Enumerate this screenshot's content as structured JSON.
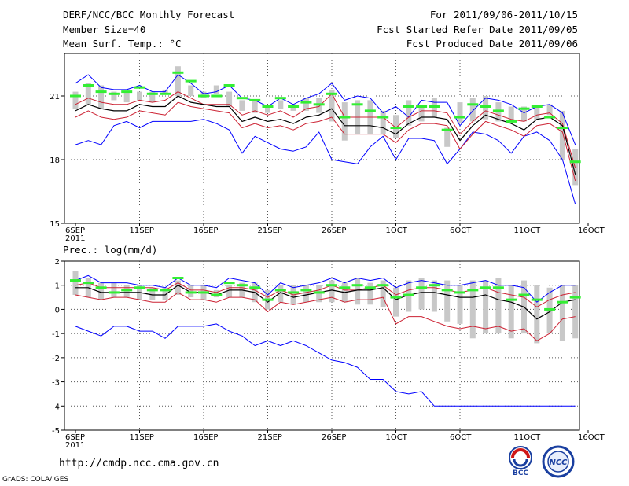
{
  "header": {
    "title": "DERF/NCC/BCC Monthly Forecast",
    "member_size": "Member Size=40",
    "variable": "Mean Surf. Temp.: °C",
    "period": "For 2011/09/06-2011/10/15",
    "refer_date": "Fcst Started Refer Date 2011/09/05",
    "produced_date": "Fcst Produced Date 2011/09/06"
  },
  "footer": {
    "url": "http://cmdp.ncc.cma.gov.cn",
    "credit": "GrADS: COLA/IGES",
    "logo_left_text": "BCC",
    "logo_right_text": "NCC"
  },
  "colors": {
    "max_min": "#0000ff",
    "ensemble_spread": "#cc2233",
    "mean": "#000000",
    "box": "#c8c8c8",
    "median_mark": "#33ee33",
    "grid": "#555555"
  },
  "chart_data": [
    {
      "type": "line",
      "title": "Mean Surf. Temp.: °C",
      "days": [
        "6SEP",
        "7SEP",
        "8SEP",
        "9SEP",
        "10SEP",
        "11SEP",
        "12SEP",
        "13SEP",
        "14SEP",
        "15SEP",
        "16SEP",
        "17SEP",
        "18SEP",
        "19SEP",
        "20SEP",
        "21SEP",
        "22SEP",
        "23SEP",
        "24SEP",
        "25SEP",
        "26SEP",
        "27SEP",
        "28SEP",
        "29SEP",
        "30SEP",
        "1OCT",
        "2OCT",
        "3OCT",
        "4OCT",
        "5OCT",
        "6OCT",
        "7OCT",
        "8OCT",
        "9OCT",
        "10OCT",
        "11OCT",
        "12OCT",
        "13OCT",
        "14OCT",
        "15OCT"
      ],
      "x_tick_labels": [
        "6SEP\n2011",
        "11SEP",
        "16SEP",
        "21SEP",
        "26SEP",
        "1OCT",
        "6OCT",
        "11OCT",
        "16OCT"
      ],
      "ylim": [
        15,
        23
      ],
      "yticks": [
        15,
        18,
        21
      ],
      "series": [
        {
          "name": "max",
          "values": [
            21.6,
            22.0,
            21.4,
            21.3,
            21.3,
            21.5,
            21.2,
            21.2,
            22.0,
            21.6,
            21.1,
            21.2,
            21.5,
            20.9,
            20.8,
            20.5,
            20.9,
            20.6,
            20.9,
            21.1,
            21.6,
            20.8,
            21.0,
            20.9,
            20.2,
            20.5,
            20.0,
            20.8,
            20.7,
            20.7,
            19.6,
            20.3,
            20.9,
            20.8,
            20.6,
            20.2,
            20.5,
            20.6,
            20.2,
            18.7
          ]
        },
        {
          "name": "ens_upper",
          "values": [
            20.6,
            20.9,
            20.7,
            20.6,
            20.6,
            20.8,
            20.7,
            20.8,
            21.2,
            20.9,
            20.6,
            20.6,
            20.6,
            20.1,
            20.3,
            20.1,
            20.3,
            20.0,
            20.4,
            20.5,
            21.1,
            20.0,
            20.0,
            20.0,
            20.0,
            19.5,
            20.0,
            20.3,
            20.3,
            20.2,
            19.2,
            19.8,
            20.3,
            20.1,
            19.9,
            19.8,
            20.1,
            20.2,
            19.7,
            17.6
          ]
        },
        {
          "name": "mean",
          "values": [
            20.3,
            20.6,
            20.4,
            20.3,
            20.3,
            20.6,
            20.5,
            20.5,
            21.0,
            20.7,
            20.6,
            20.5,
            20.5,
            19.8,
            20.0,
            19.8,
            19.9,
            19.7,
            20.0,
            20.1,
            20.4,
            19.6,
            19.6,
            19.6,
            19.5,
            19.2,
            19.7,
            20.0,
            20.0,
            19.9,
            18.9,
            19.6,
            20.1,
            19.9,
            19.7,
            19.4,
            19.9,
            20.0,
            19.6,
            17.3
          ]
        },
        {
          "name": "ens_lower",
          "values": [
            20.0,
            20.3,
            20.0,
            19.9,
            20.0,
            20.3,
            20.2,
            20.1,
            20.7,
            20.5,
            20.4,
            20.3,
            20.2,
            19.5,
            19.7,
            19.5,
            19.6,
            19.4,
            19.7,
            19.8,
            20.0,
            19.2,
            19.2,
            19.2,
            19.2,
            18.8,
            19.4,
            19.7,
            19.7,
            19.6,
            18.5,
            19.2,
            19.8,
            19.6,
            19.4,
            19.1,
            19.6,
            19.7,
            19.3,
            17.0
          ]
        },
        {
          "name": "min",
          "values": [
            18.7,
            18.9,
            18.7,
            19.6,
            19.8,
            19.5,
            19.8,
            19.8,
            19.8,
            19.8,
            19.9,
            19.7,
            19.4,
            18.3,
            19.1,
            18.8,
            18.5,
            18.4,
            18.6,
            19.3,
            18.0,
            17.9,
            17.8,
            18.6,
            19.1,
            18.0,
            19.0,
            19.0,
            18.9,
            17.8,
            18.5,
            19.3,
            19.2,
            18.9,
            18.3,
            19.1,
            19.3,
            18.9,
            18.0,
            15.9
          ]
        },
        {
          "name": "median",
          "values": [
            21.0,
            21.5,
            21.2,
            21.1,
            21.2,
            21.4,
            21.1,
            21.1,
            22.1,
            21.7,
            21.0,
            21.0,
            21.5,
            20.9,
            20.8,
            20.5,
            20.9,
            20.5,
            20.7,
            20.6,
            21.1,
            20.0,
            20.6,
            20.3,
            20.0,
            19.5,
            20.5,
            20.5,
            20.5,
            19.4,
            20.0,
            20.6,
            20.5,
            20.3,
            19.8,
            20.4,
            20.5,
            20.0,
            19.5,
            17.9
          ]
        },
        {
          "name": "box_top",
          "values": [
            21.2,
            21.6,
            21.5,
            21.2,
            21.2,
            21.2,
            21.2,
            21.3,
            22.4,
            21.5,
            21.2,
            21.5,
            21.2,
            20.8,
            20.8,
            20.5,
            20.8,
            20.6,
            20.9,
            20.9,
            21.3,
            20.7,
            20.8,
            20.8,
            20.3,
            20.1,
            20.8,
            20.5,
            20.9,
            19.5,
            20.7,
            20.9,
            21.0,
            20.7,
            20.5,
            20.5,
            20.5,
            20.6,
            20.3,
            18.5
          ]
        },
        {
          "name": "box_bottom",
          "values": [
            20.4,
            20.6,
            20.4,
            20.8,
            20.7,
            20.8,
            20.7,
            21.1,
            21.0,
            21.0,
            20.9,
            21.1,
            20.5,
            20.3,
            20.2,
            20.2,
            20.4,
            20.3,
            20.3,
            20.2,
            19.8,
            18.9,
            19.2,
            19.2,
            19.2,
            19.0,
            19.6,
            19.8,
            20.0,
            18.6,
            19.7,
            19.8,
            19.9,
            19.8,
            19.8,
            19.8,
            19.9,
            20.1,
            18.0,
            16.8
          ]
        }
      ]
    },
    {
      "type": "line",
      "title": "Prec.: log(mm/d)",
      "days": [
        "6SEP",
        "7SEP",
        "8SEP",
        "9SEP",
        "10SEP",
        "11SEP",
        "12SEP",
        "13SEP",
        "14SEP",
        "15SEP",
        "16SEP",
        "17SEP",
        "18SEP",
        "19SEP",
        "20SEP",
        "21SEP",
        "22SEP",
        "23SEP",
        "24SEP",
        "25SEP",
        "26SEP",
        "27SEP",
        "28SEP",
        "29SEP",
        "30SEP",
        "1OCT",
        "2OCT",
        "3OCT",
        "4OCT",
        "5OCT",
        "6OCT",
        "7OCT",
        "8OCT",
        "9OCT",
        "10OCT",
        "11OCT",
        "12OCT",
        "13OCT",
        "14OCT",
        "15OCT"
      ],
      "x_tick_labels": [
        "6SEP\n2011",
        "11SEP",
        "16SEP",
        "21SEP",
        "26SEP",
        "1OCT",
        "6OCT",
        "11OCT",
        "16OCT"
      ],
      "ylim": [
        -5,
        2
      ],
      "yticks": [
        -5,
        -4,
        -3,
        -2,
        -1,
        0,
        1,
        2
      ],
      "series": [
        {
          "name": "max",
          "values": [
            1.2,
            1.4,
            1.1,
            1.1,
            1.1,
            1.0,
            1.0,
            0.9,
            1.3,
            1.0,
            1.0,
            0.9,
            1.3,
            1.2,
            1.1,
            0.6,
            1.1,
            0.9,
            1.0,
            1.1,
            1.3,
            1.1,
            1.3,
            1.2,
            1.3,
            0.9,
            1.1,
            1.2,
            1.1,
            1.0,
            1.0,
            1.1,
            1.2,
            1.0,
            1.0,
            0.9,
            0.3,
            0.7,
            1.0,
            1.0
          ]
        },
        {
          "name": "ens_upper",
          "values": [
            1.0,
            1.1,
            0.9,
            0.9,
            0.9,
            0.9,
            0.9,
            0.8,
            1.1,
            0.8,
            0.8,
            0.7,
            0.9,
            0.9,
            0.8,
            0.5,
            0.8,
            0.6,
            0.7,
            0.8,
            1.0,
            0.8,
            0.8,
            0.9,
            1.0,
            0.6,
            0.8,
            0.9,
            0.9,
            0.8,
            0.7,
            0.8,
            0.9,
            0.7,
            0.6,
            0.5,
            0.1,
            0.4,
            0.6,
            0.7
          ]
        },
        {
          "name": "mean",
          "values": [
            0.9,
            0.9,
            0.7,
            0.7,
            0.7,
            0.7,
            0.6,
            0.6,
            1.0,
            0.7,
            0.7,
            0.6,
            0.8,
            0.8,
            0.7,
            0.3,
            0.7,
            0.5,
            0.6,
            0.7,
            0.8,
            0.7,
            0.8,
            0.8,
            0.9,
            0.4,
            0.6,
            0.7,
            0.7,
            0.6,
            0.5,
            0.5,
            0.6,
            0.4,
            0.3,
            0.1,
            -0.4,
            -0.1,
            0.3,
            0.4
          ]
        },
        {
          "name": "ens_lower",
          "values": [
            0.6,
            0.5,
            0.4,
            0.5,
            0.5,
            0.4,
            0.3,
            0.3,
            0.7,
            0.4,
            0.4,
            0.3,
            0.5,
            0.5,
            0.4,
            -0.1,
            0.3,
            0.2,
            0.3,
            0.4,
            0.5,
            0.3,
            0.4,
            0.4,
            0.5,
            -0.6,
            -0.3,
            -0.3,
            -0.5,
            -0.7,
            -0.8,
            -0.7,
            -0.8,
            -0.7,
            -0.9,
            -0.8,
            -1.3,
            -1.0,
            -0.4,
            -0.3
          ]
        },
        {
          "name": "min",
          "values": [
            -0.7,
            -0.9,
            -1.1,
            -0.7,
            -0.7,
            -0.9,
            -0.9,
            -1.2,
            -0.7,
            -0.7,
            -0.7,
            -0.6,
            -0.9,
            -1.1,
            -1.5,
            -1.3,
            -1.5,
            -1.3,
            -1.5,
            -1.8,
            -2.1,
            -2.2,
            -2.4,
            -2.9,
            -2.9,
            -3.4,
            -3.5,
            -3.4,
            -4.0,
            -4.0,
            -4.0,
            -4.0,
            -4.0,
            -4.0,
            -4.0,
            -4.0,
            -4.0,
            -4.0,
            -4.0,
            -4.0
          ]
        },
        {
          "name": "median",
          "values": [
            1.2,
            1.1,
            0.9,
            0.7,
            0.8,
            0.9,
            0.8,
            0.8,
            1.3,
            0.7,
            0.7,
            0.6,
            1.1,
            1.0,
            0.9,
            0.4,
            0.8,
            0.7,
            0.8,
            0.7,
            1.0,
            0.9,
            1.0,
            0.9,
            1.0,
            0.5,
            0.6,
            0.9,
            1.0,
            0.8,
            0.7,
            0.8,
            0.9,
            0.9,
            0.4,
            0.6,
            0.4,
            0.0,
            0.3,
            0.5
          ]
        },
        {
          "name": "box_top",
          "values": [
            1.6,
            1.3,
            1.1,
            1.1,
            1.0,
            1.0,
            0.9,
            0.9,
            1.2,
            1.0,
            1.0,
            0.8,
            1.0,
            1.1,
            1.1,
            0.8,
            1.0,
            1.0,
            1.0,
            1.0,
            1.2,
            1.1,
            1.3,
            1.1,
            1.2,
            0.9,
            1.2,
            1.3,
            1.2,
            1.2,
            1.0,
            1.2,
            1.2,
            1.3,
            1.0,
            1.2,
            1.0,
            0.9,
            1.0,
            1.0
          ]
        },
        {
          "name": "box_bottom",
          "values": [
            0.6,
            0.5,
            0.4,
            0.5,
            0.5,
            0.4,
            0.4,
            0.4,
            0.6,
            0.5,
            0.4,
            0.5,
            0.5,
            0.5,
            0.3,
            0.0,
            0.3,
            0.2,
            0.3,
            0.3,
            0.3,
            0.3,
            0.2,
            0.2,
            0.1,
            -0.3,
            -0.1,
            0.0,
            -0.1,
            -0.5,
            -0.6,
            -1.2,
            -1.0,
            -1.0,
            -1.2,
            -1.0,
            -1.4,
            -1.0,
            -1.3,
            -1.2
          ]
        }
      ]
    }
  ]
}
